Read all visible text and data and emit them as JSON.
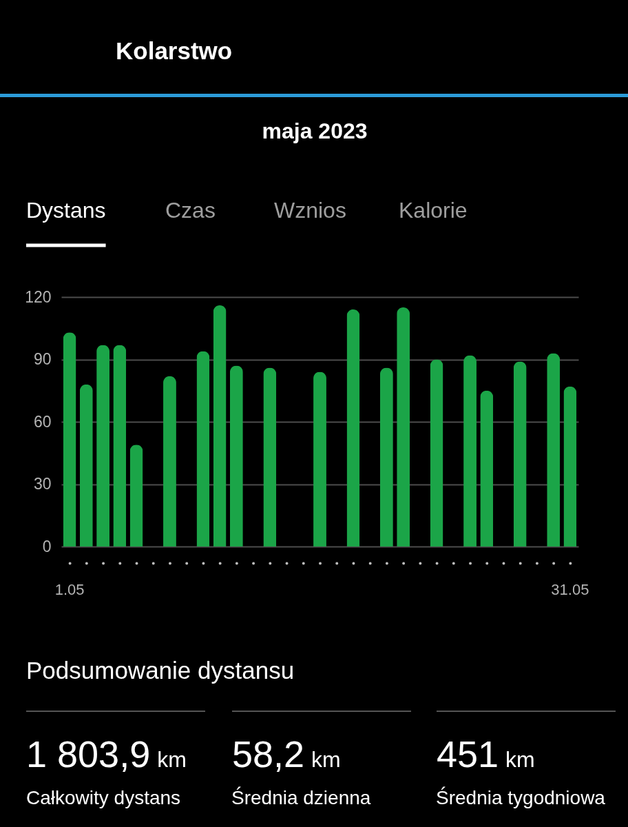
{
  "chart_data": {
    "type": "bar",
    "title": "Kolarstwo",
    "subtitle": "maja 2023",
    "categories": [
      "1.05",
      null,
      null,
      null,
      null,
      null,
      null,
      null,
      null,
      null,
      null,
      null,
      null,
      null,
      null,
      null,
      null,
      null,
      null,
      null,
      null,
      null,
      null,
      null,
      null,
      null,
      null,
      null,
      null,
      null,
      "31.05"
    ],
    "values": [
      103,
      78,
      97,
      97,
      49,
      null,
      82,
      null,
      94,
      116,
      87,
      null,
      86,
      null,
      null,
      84,
      null,
      114,
      null,
      86,
      115,
      null,
      90,
      null,
      92,
      75,
      null,
      89,
      null,
      93,
      77
    ],
    "color": "#1ba548",
    "ylim": [
      0,
      120
    ],
    "yticks": [
      0,
      30,
      60,
      90,
      120
    ],
    "grid": "y",
    "annotations": [
      "Dystans",
      "Czas",
      "Wznios",
      "Kalorie",
      "Podsumowanie dystansu",
      "1 803,9 km",
      "Całkowity dystans",
      "58,2 km",
      "Średnia dzienna",
      "451 km",
      "Średnia tygodniowa"
    ]
  }
}
